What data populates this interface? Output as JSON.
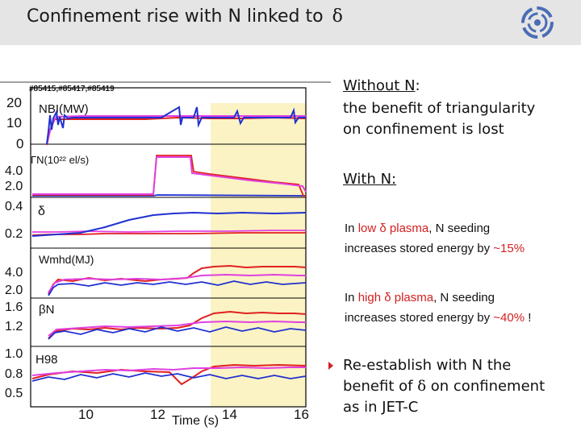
{
  "slide": {
    "title": "Confinement rise with N linked to",
    "title_symbol": "δ"
  },
  "figure": {
    "shots": "#85415,#85417,#85419",
    "panels": [
      {
        "name": "NBI",
        "label": "NBI(MW)",
        "ticks": [
          "20",
          "10",
          "0"
        ]
      },
      {
        "name": "gamma-n",
        "label": "ΓN(10²² el/s)",
        "ticks": [
          "4.0",
          "2.0"
        ]
      },
      {
        "name": "delta",
        "label": "δ",
        "ticks": [
          "0.4",
          "0.2"
        ]
      },
      {
        "name": "wmhd",
        "label": "Wmhd(MJ)",
        "ticks": [
          "4.0",
          "2.0"
        ]
      },
      {
        "name": "beta-n",
        "label": "βN",
        "ticks": [
          "1.6",
          "1.2"
        ]
      },
      {
        "name": "h98",
        "label": "H98",
        "ticks": [
          "1.0",
          "0.8",
          "0.5"
        ]
      }
    ],
    "xticks": [
      "10",
      "12",
      "14",
      "16"
    ],
    "xlabel": "Time (s)",
    "colors": {
      "red": "#e02020",
      "blue": "#2030d0",
      "magenta": "#e040e0",
      "highlight": "#fbf3c4"
    }
  },
  "text": {
    "without_n": "Without N",
    "without_n_colon": ":",
    "without_line1": "the benefit of triangularity",
    "without_line2": "on confinement is lost",
    "with_n": "With N:",
    "low_in": "In",
    "low_word": "low",
    "low_delta_plasma": "δ plasma",
    "low_seeding": ", N seeding",
    "low_line2": "increases stored energy by",
    "low_pct": "~15%",
    "high_in": "In",
    "high_word": "high",
    "high_delta_plasma": "δ plasma",
    "high_seeding": ", N seeding",
    "high_line2": "increases stored energy by",
    "high_pct": "~40%",
    "high_excl": " !",
    "re_line1": "Re-establish with N the",
    "re_line2_a": "benefit of",
    "re_line2_delta": "δ",
    "re_line2_b": "on confinement",
    "re_line3": "as in JET-C"
  }
}
